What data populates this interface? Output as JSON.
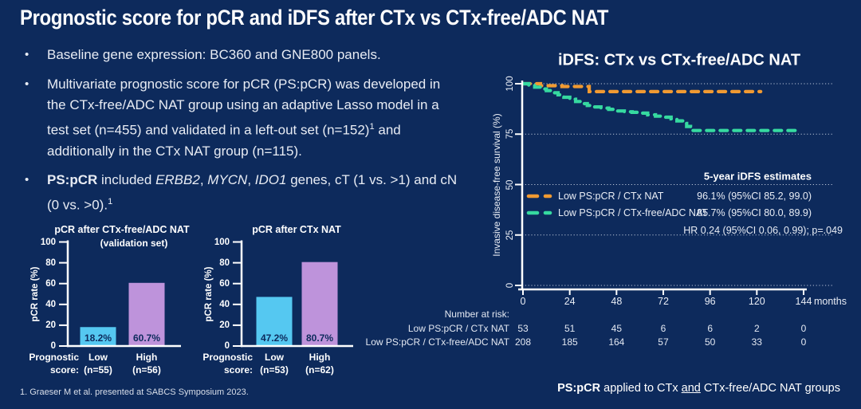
{
  "slide": {
    "title": "Prognostic score for pCR and iDFS after CTx vs CTx-free/ADC NAT",
    "bullets": [
      {
        "segments": [
          {
            "t": "Baseline gene expression: BC360 and GNE800 panels."
          }
        ]
      },
      {
        "segments": [
          {
            "t": "Multivariate prognostic score for pCR (PS:pCR) was developed in the CTx-free/ADC NAT group using an adaptive Lasso model in a test set (n=455) and validated in a left-out set (n=152)"
          },
          {
            "t": "1",
            "sup": true
          },
          {
            "t": " and additionally in the CTx NAT group (n=115)."
          }
        ]
      },
      {
        "segments": [
          {
            "t": "PS:pCR",
            "b": true
          },
          {
            "t": " included "
          },
          {
            "t": "ERBB2",
            "i": true
          },
          {
            "t": ", "
          },
          {
            "t": "MYCN",
            "i": true
          },
          {
            "t": ", "
          },
          {
            "t": "IDO1",
            "i": true
          },
          {
            "t": " genes, cT (1 vs. >1) and cN (0 vs. >0)."
          },
          {
            "t": "1",
            "sup": true
          }
        ]
      }
    ],
    "footnote": "1. Graeser M et al. presented at SABCS Symposium 2023.",
    "footer_right": [
      {
        "t": "PS:pCR",
        "b": true
      },
      {
        "t": " applied to CTx "
      },
      {
        "t": "and",
        "u": true
      },
      {
        "t": " CTx-free/ADC NAT groups"
      }
    ]
  },
  "colors": {
    "background": "#0D2A5C",
    "text": "#E9EDF5",
    "axis": "#FFFFFF",
    "bar_low": "#55C8F1",
    "bar_high": "#BE93DB",
    "ctx_nat": "#F09A32",
    "ctx_free_adc": "#36D9A0",
    "gridline": "rgba(215,222,235,0.85)"
  },
  "chart_data": [
    {
      "type": "bar",
      "id": "pcr-ctx-free",
      "title": "pCR after CTx-free/ADC NAT",
      "subtitle": "(validation set)",
      "ylabel": "pCR rate (%)",
      "ylim": [
        0,
        100
      ],
      "yticks": [
        0,
        20,
        40,
        60,
        80,
        100
      ],
      "xlabel_lines": [
        "Prognostic",
        "score:"
      ],
      "categories": [
        "Low",
        "High"
      ],
      "category_sub": [
        "(n=55)",
        "(n=56)"
      ],
      "values": [
        18.2,
        60.7
      ],
      "value_labels": [
        "18.2%",
        "60.7%"
      ],
      "bar_colors": [
        "#55C8F1",
        "#BE93DB"
      ]
    },
    {
      "type": "bar",
      "id": "pcr-ctx",
      "title": "pCR after CTx NAT",
      "subtitle": "",
      "ylabel": "pCR rate (%)",
      "ylim": [
        0,
        100
      ],
      "yticks": [
        0,
        20,
        40,
        60,
        80,
        100
      ],
      "xlabel_lines": [
        "Prognostic",
        "score:"
      ],
      "categories": [
        "Low",
        "High"
      ],
      "category_sub": [
        "(n=53)",
        "(n=62)"
      ],
      "values": [
        47.2,
        80.7
      ],
      "value_labels": [
        "47.2%",
        "80.7%"
      ],
      "bar_colors": [
        "#55C8F1",
        "#BE93DB"
      ]
    },
    {
      "type": "line",
      "id": "km-idfs",
      "title": "iDFS: CTx vs CTx-free/ADC NAT",
      "ylabel": "Invasive disease-free survival (%)",
      "xlim": [
        0,
        144
      ],
      "ylim": [
        0,
        100
      ],
      "xticks": [
        0,
        24,
        48,
        72,
        96,
        120,
        144
      ],
      "x_unit": "months",
      "yticks": [
        0,
        25,
        50,
        75,
        100
      ],
      "grid": true,
      "legend_header": "5-year iDFS estimates",
      "hr_text": "HR 0.24 (95%CI 0.06, 0.99); p=.049",
      "series": [
        {
          "name": "Low PS:pCR / CTx NAT",
          "color": "#F09A32",
          "estimate": "96.1% (95%CI 85.2, 99.0)",
          "points": [
            [
              0,
              100
            ],
            [
              9,
              100
            ],
            [
              9,
              99
            ],
            [
              20,
              99
            ],
            [
              20,
              98.6
            ],
            [
              33,
              98.6
            ],
            [
              34,
              96.1
            ],
            [
              122,
              96.1
            ]
          ]
        },
        {
          "name": "Low PS:pCR / CTx-free/ADC NAT",
          "color": "#36D9A0",
          "estimate": "85.7% (95%CI 80.0, 89.9)",
          "points": [
            [
              0,
              100
            ],
            [
              3,
              99.2
            ],
            [
              6,
              98.3
            ],
            [
              9,
              97.4
            ],
            [
              12,
              96.6
            ],
            [
              15,
              95.5
            ],
            [
              18,
              94.5
            ],
            [
              21,
              93.3
            ],
            [
              24,
              92.3
            ],
            [
              27,
              91.2
            ],
            [
              30,
              90.1
            ],
            [
              33,
              89.2
            ],
            [
              36,
              88.5
            ],
            [
              40,
              87.9
            ],
            [
              44,
              87.3
            ],
            [
              48,
              86.5
            ],
            [
              52,
              86.1
            ],
            [
              56,
              85.8
            ],
            [
              60,
              85.4
            ],
            [
              64,
              84.6
            ],
            [
              68,
              83.9
            ],
            [
              72,
              83.4
            ],
            [
              76,
              82.6
            ],
            [
              79,
              81.6
            ],
            [
              82,
              80.3
            ],
            [
              84,
              78.8
            ],
            [
              86,
              76.8
            ],
            [
              141,
              76.8
            ]
          ]
        }
      ],
      "number_at_risk": {
        "label": "Number at risk:",
        "rows": [
          {
            "name": "Low PS:pCR / CTx NAT",
            "counts": [
              "53",
              "51",
              "45",
              "6",
              "6",
              "2",
              "0"
            ]
          },
          {
            "name": "Low PS:pCR / CTx-free/ADC NAT",
            "counts": [
              "208",
              "185",
              "164",
              "57",
              "50",
              "33",
              "0"
            ]
          }
        ]
      }
    }
  ]
}
